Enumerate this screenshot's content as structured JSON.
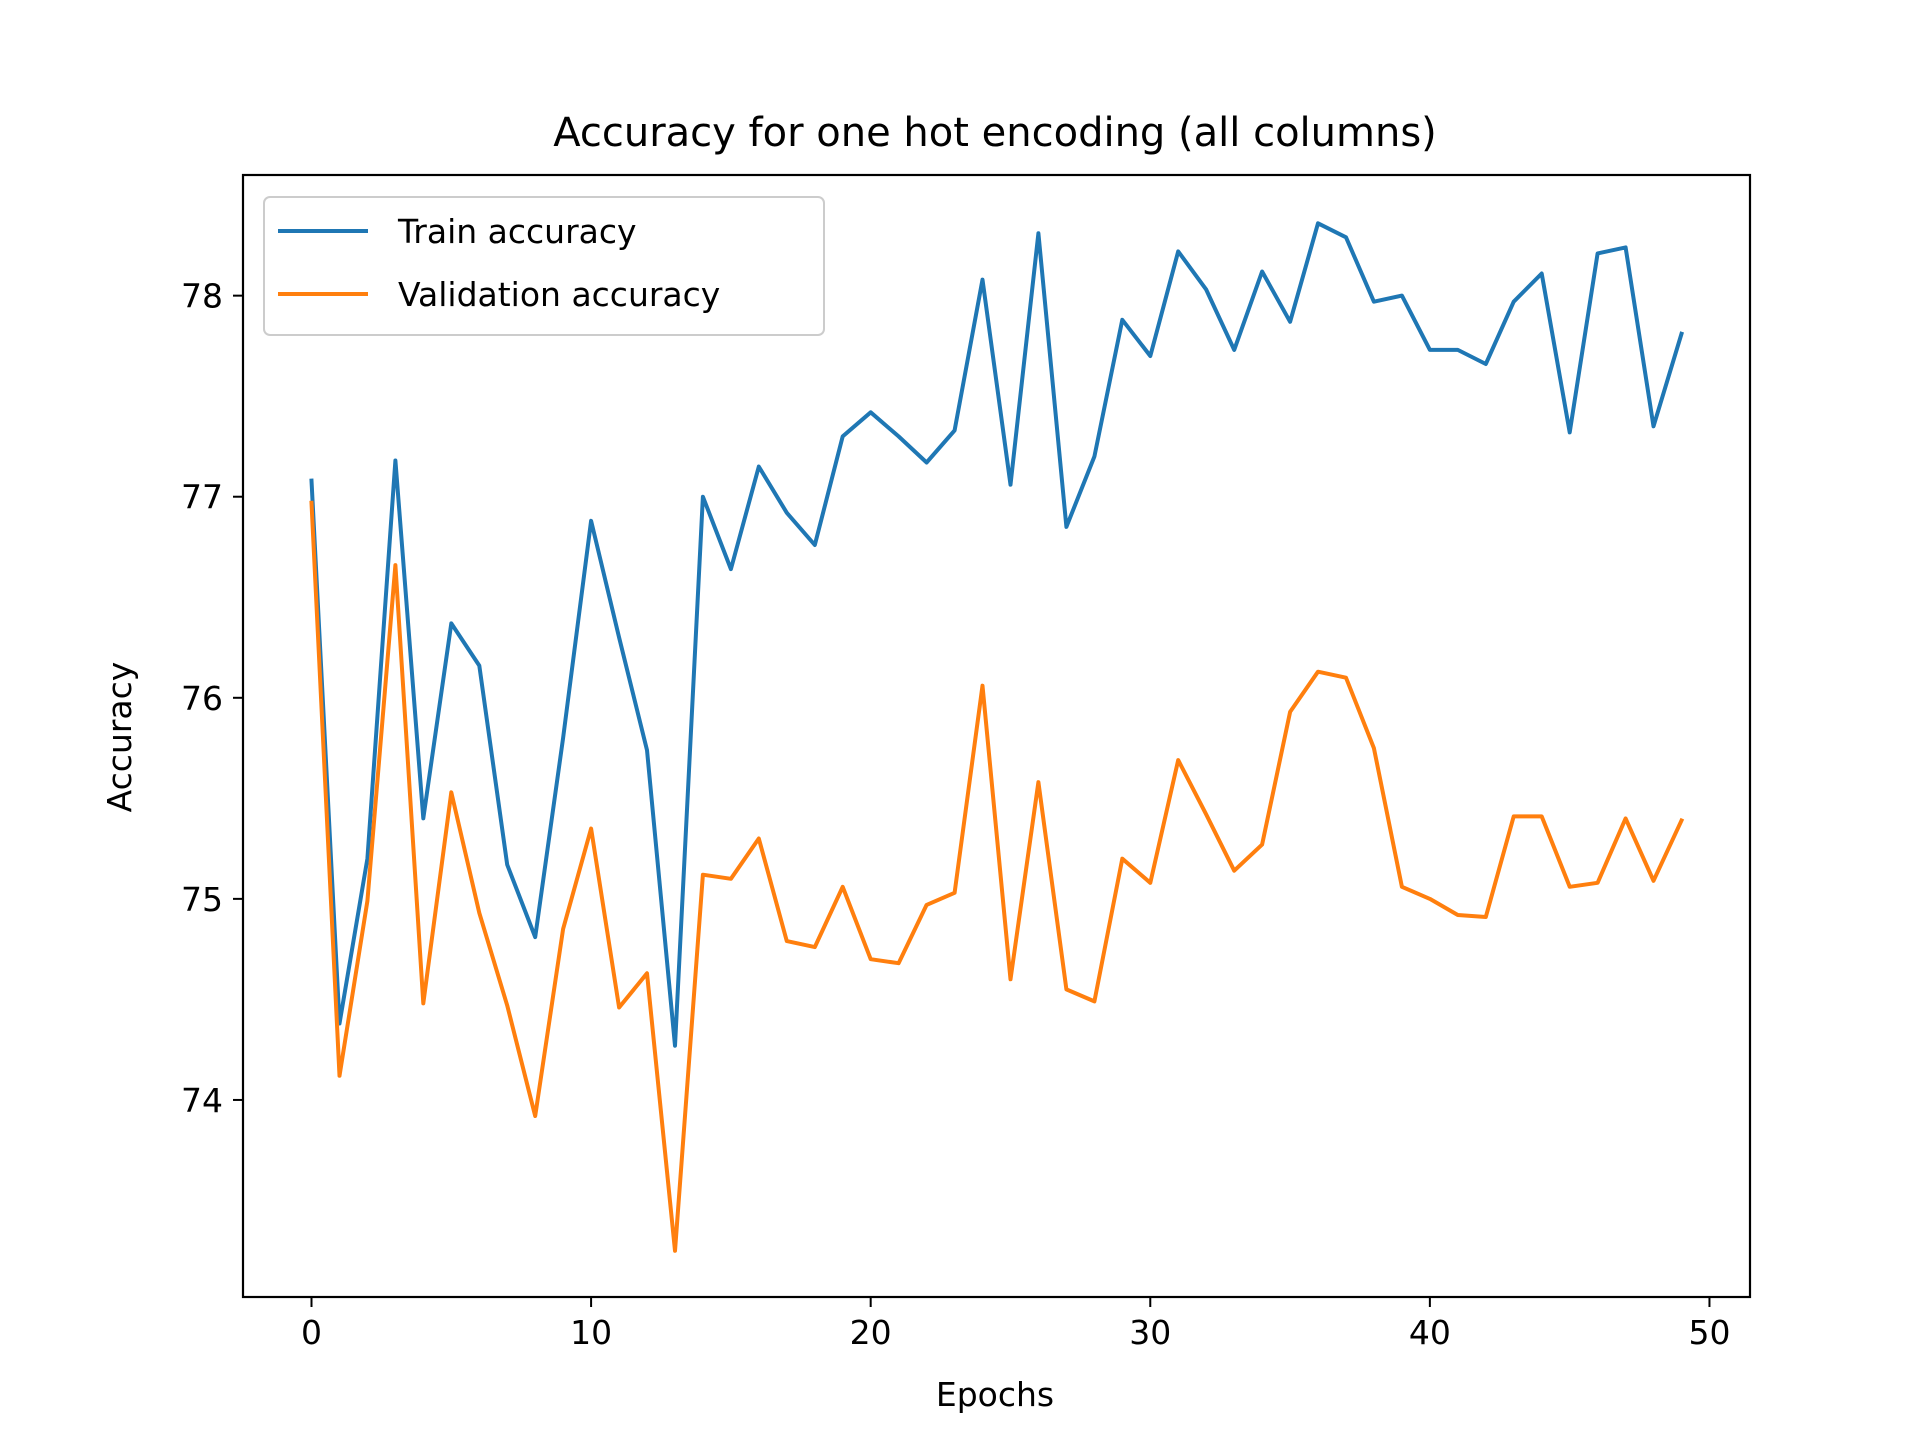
{
  "chart_data": {
    "type": "line",
    "title": "Accuracy for one hot encoding (all columns)",
    "xlabel": "Epochs",
    "ylabel": "Accuracy",
    "x": [
      0,
      1,
      2,
      3,
      4,
      5,
      6,
      7,
      8,
      9,
      10,
      11,
      12,
      13,
      14,
      15,
      16,
      17,
      18,
      19,
      20,
      21,
      22,
      23,
      24,
      25,
      26,
      27,
      28,
      29,
      30,
      31,
      32,
      33,
      34,
      35,
      36,
      37,
      38,
      39,
      40,
      41,
      42,
      43,
      44,
      45,
      46,
      47,
      48,
      49
    ],
    "xlim": [
      -2.45,
      51.45
    ],
    "ylim": [
      73.02,
      78.6
    ],
    "xticks": [
      0,
      10,
      20,
      30,
      40,
      50
    ],
    "yticks": [
      74,
      75,
      76,
      77,
      78
    ],
    "grid": false,
    "legend_position": "upper-left",
    "series": [
      {
        "name": "Train accuracy",
        "color": "#1f77b4",
        "values": [
          77.08,
          74.38,
          75.2,
          77.18,
          75.4,
          76.37,
          76.16,
          75.17,
          74.81,
          75.8,
          76.88,
          76.3,
          75.74,
          74.27,
          77.0,
          76.64,
          77.15,
          76.92,
          76.76,
          77.3,
          77.42,
          77.3,
          77.17,
          77.33,
          78.08,
          77.06,
          78.31,
          76.85,
          77.2,
          77.88,
          77.7,
          78.22,
          78.03,
          77.73,
          78.12,
          77.87,
          78.36,
          78.29,
          77.97,
          78.0,
          77.73,
          77.73,
          77.66,
          77.97,
          78.11,
          77.32,
          78.21,
          78.24,
          77.35,
          77.81
        ]
      },
      {
        "name": "Validation accuracy",
        "color": "#ff7f0e",
        "values": [
          76.97,
          74.12,
          74.99,
          76.66,
          74.48,
          75.53,
          74.93,
          74.47,
          73.92,
          74.85,
          75.35,
          74.46,
          74.63,
          73.25,
          75.12,
          75.1,
          75.3,
          74.79,
          74.76,
          75.06,
          74.7,
          74.68,
          74.97,
          75.03,
          76.06,
          74.6,
          75.58,
          74.55,
          74.49,
          75.2,
          75.08,
          75.69,
          75.42,
          75.14,
          75.27,
          75.93,
          76.13,
          76.1,
          75.75,
          75.06,
          75.0,
          74.92,
          74.91,
          75.41,
          75.41,
          75.06,
          75.08,
          75.4,
          75.09,
          75.39
        ]
      }
    ]
  }
}
